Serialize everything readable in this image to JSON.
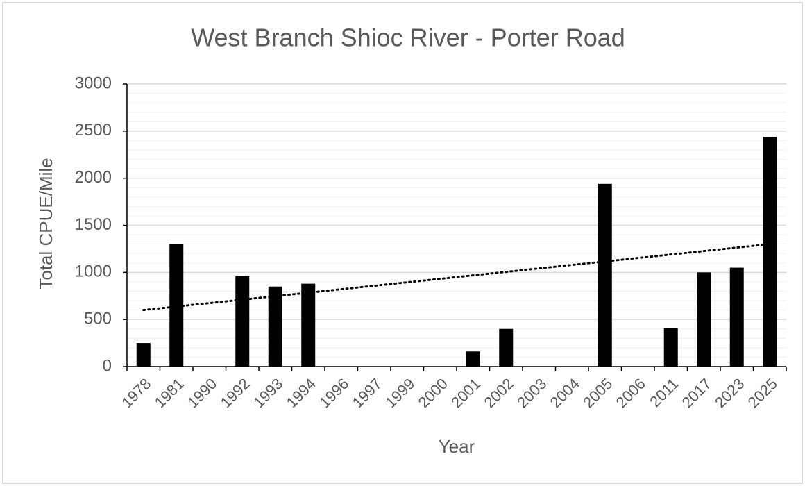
{
  "chart_data": {
    "type": "bar",
    "title": "West Branch Shioc River - Porter Road",
    "x_label": "Year",
    "y_label": "Total CPUE/Mile",
    "categories": [
      "1978",
      "1981",
      "1990",
      "1992",
      "1993",
      "1994",
      "1996",
      "1997",
      "1999",
      "2000",
      "2001",
      "2002",
      "2003",
      "2004",
      "2005",
      "2006",
      "2011",
      "2017",
      "2023",
      "2025"
    ],
    "values": [
      250,
      1300,
      0,
      960,
      850,
      880,
      0,
      0,
      0,
      0,
      160,
      400,
      0,
      0,
      1940,
      0,
      410,
      1000,
      1050,
      2440
    ],
    "color": "#000000",
    "ylim": [
      0,
      3000
    ],
    "yticks": [
      0,
      500,
      1000,
      1500,
      2000,
      2500,
      3000
    ],
    "minor_yticks": [
      100,
      200,
      300,
      400,
      600,
      700,
      800,
      900,
      1100,
      1200,
      1300,
      1400,
      1600,
      1700,
      1800,
      1900,
      2100,
      2200,
      2300,
      2400,
      2600,
      2700,
      2800,
      2900
    ],
    "grid": true,
    "trendline": {
      "start": 600,
      "end": 1300,
      "color": "#000000"
    }
  }
}
